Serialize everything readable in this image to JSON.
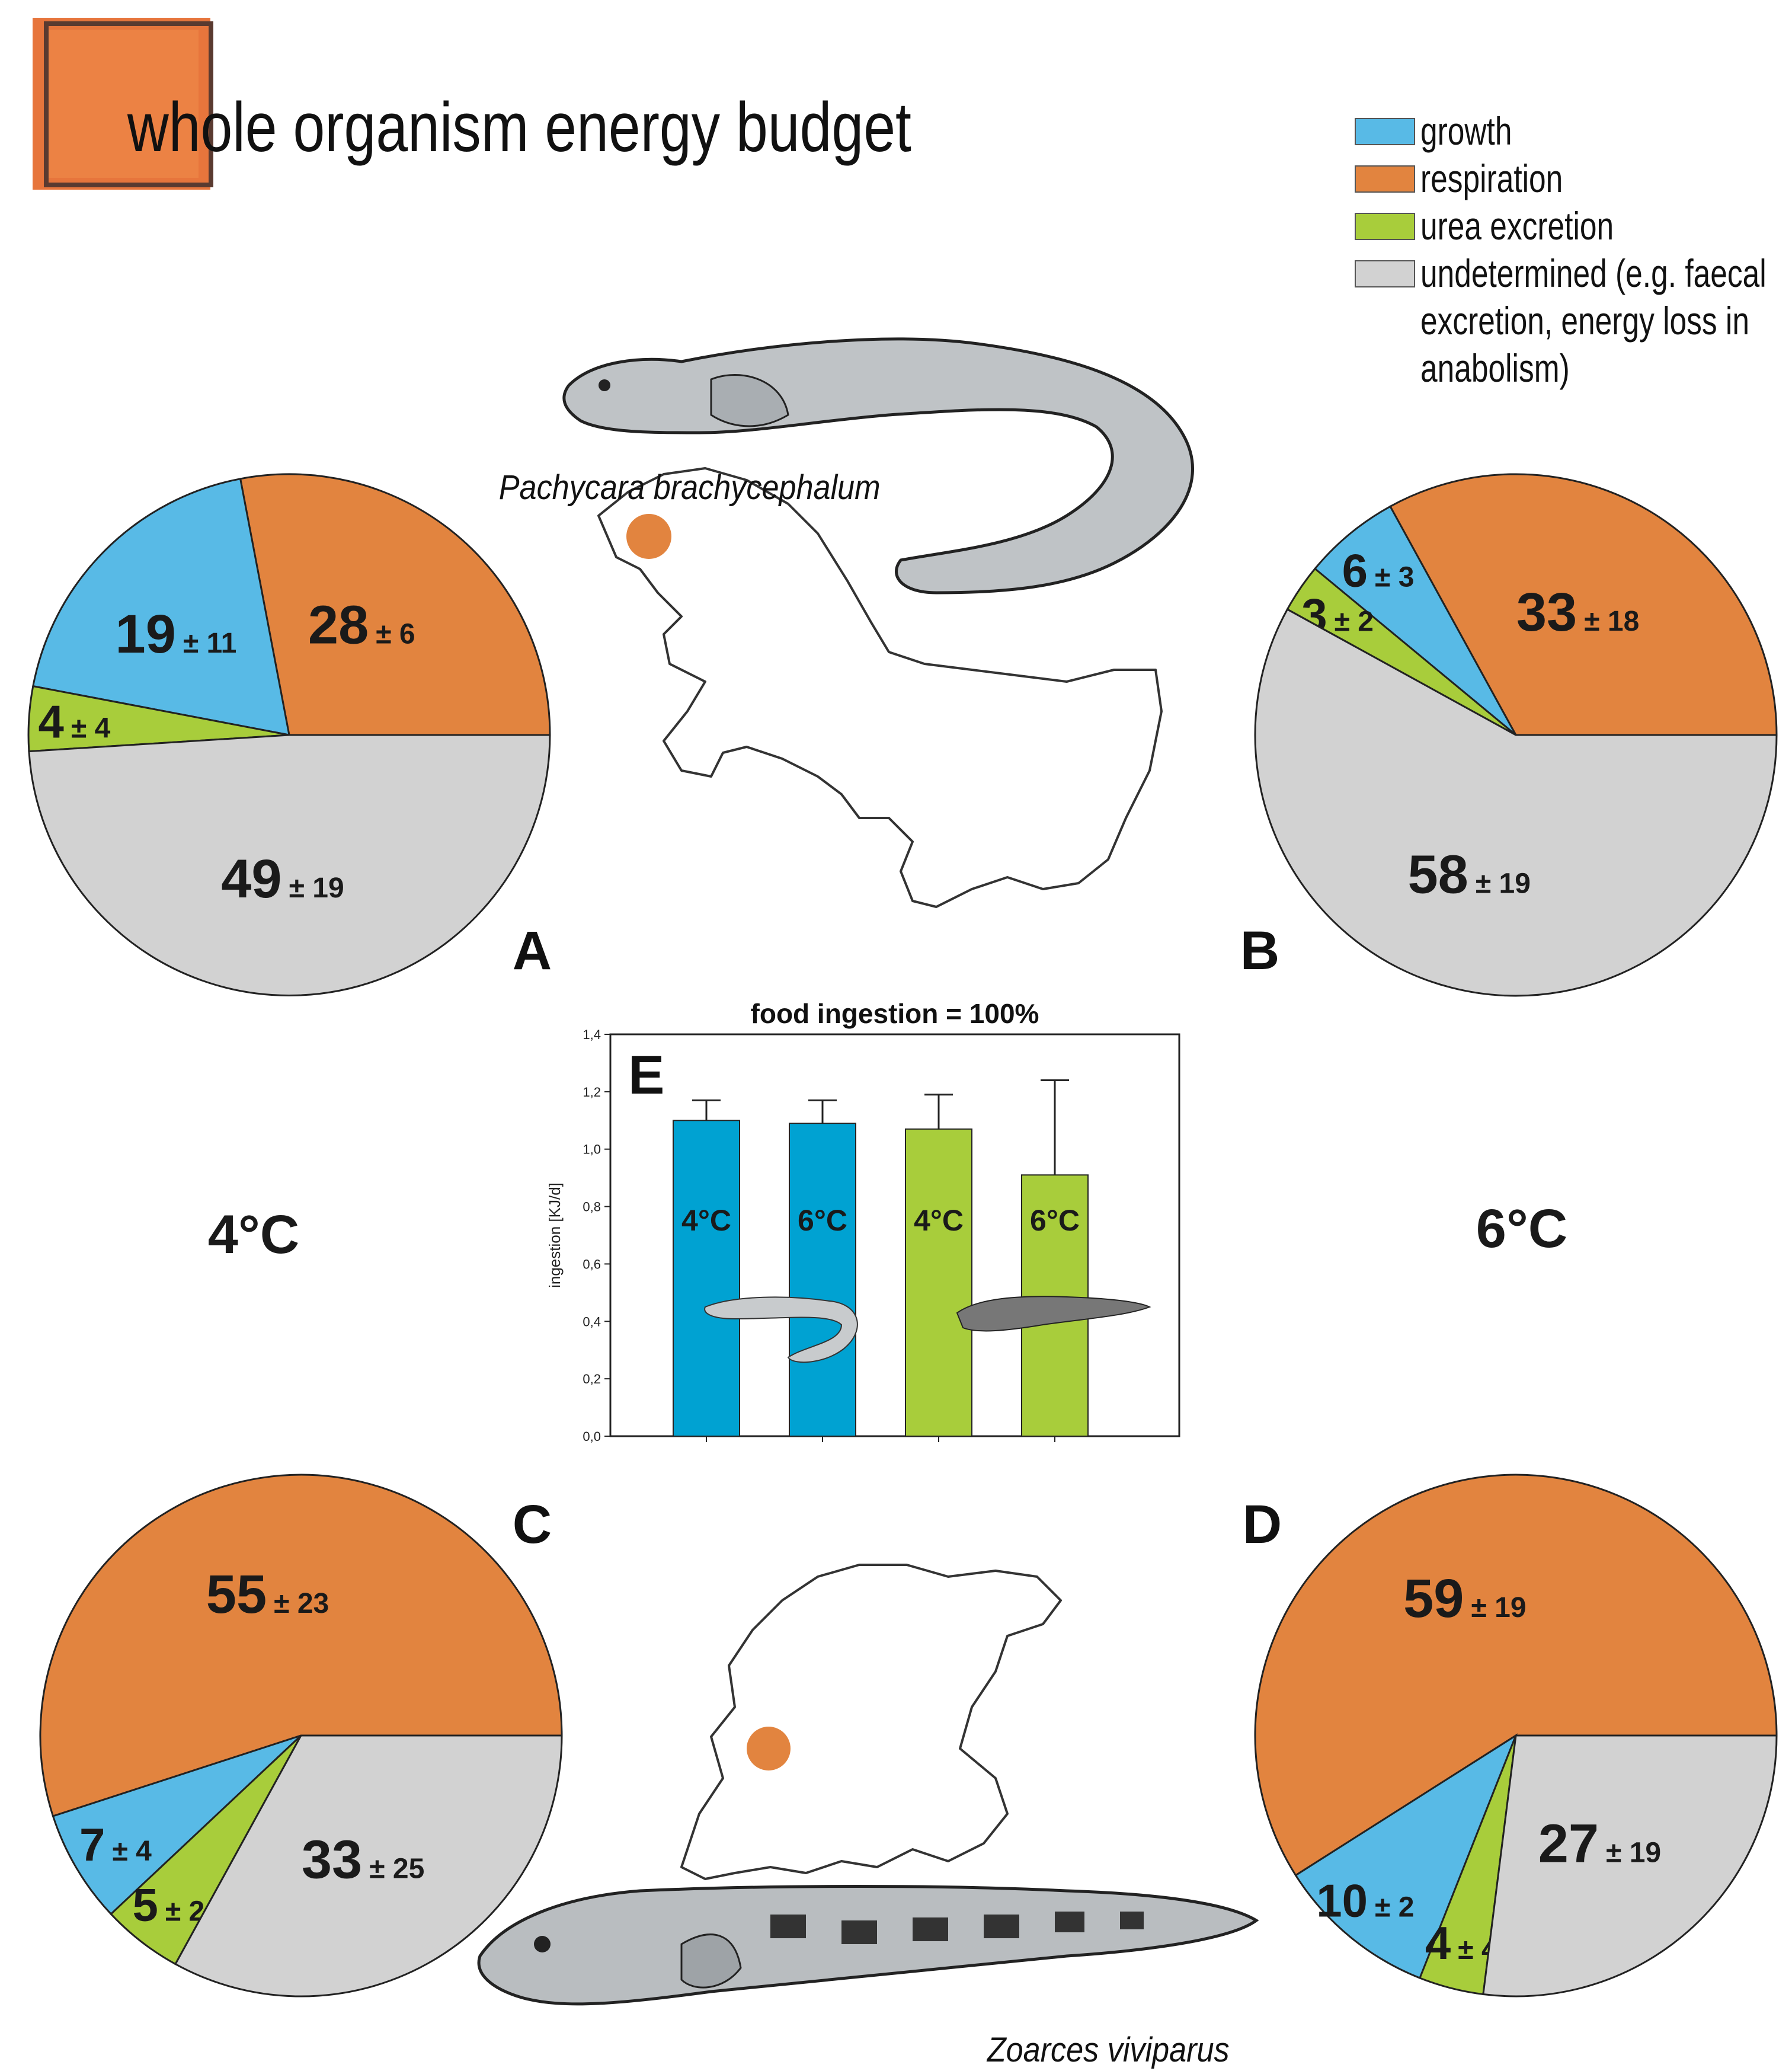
{
  "title": "whole organism energy budget",
  "colors": {
    "growth": "#58bae6",
    "respiration": "#e2843f",
    "urea": "#a8cd3b",
    "undetermined": "#d2d2d2",
    "bar_blue": "#00a2d2",
    "bar_green": "#a8cd3b",
    "dot": "#e2843f",
    "title_square": "#e7753c"
  },
  "legend": [
    {
      "key": "growth",
      "label": "growth"
    },
    {
      "key": "respiration",
      "label": "respiration"
    },
    {
      "key": "urea",
      "label": "urea excretion"
    },
    {
      "key": "undetermined",
      "label": "undetermined (e.g. faecal"
    },
    {
      "key": "",
      "label": "excretion, energy loss in"
    },
    {
      "key": "",
      "label": "anabolism)"
    }
  ],
  "species": {
    "antarctic": "Pachycara brachycephalum",
    "north_sea": "Zoarces viviparus"
  },
  "temps": {
    "left": "4°C",
    "right": "6°C"
  },
  "chart_data": [
    {
      "type": "pie",
      "panel": "A",
      "slices": [
        {
          "category": "respiration",
          "value": 28,
          "sd": "± 6"
        },
        {
          "category": "growth",
          "value": 19,
          "sd": "± 11"
        },
        {
          "category": "urea",
          "value": 4,
          "sd": "± 4"
        },
        {
          "category": "undetermined",
          "value": 49,
          "sd": "± 19"
        }
      ]
    },
    {
      "type": "pie",
      "panel": "B",
      "slices": [
        {
          "category": "respiration",
          "value": 33,
          "sd": "± 18"
        },
        {
          "category": "growth",
          "value": 6,
          "sd": "± 3"
        },
        {
          "category": "urea",
          "value": 3,
          "sd": "± 2"
        },
        {
          "category": "undetermined",
          "value": 58,
          "sd": "± 19"
        }
      ]
    },
    {
      "type": "pie",
      "panel": "C",
      "slices": [
        {
          "category": "respiration",
          "value": 55,
          "sd": "± 23"
        },
        {
          "category": "growth",
          "value": 7,
          "sd": "± 4"
        },
        {
          "category": "urea",
          "value": 5,
          "sd": "± 2"
        },
        {
          "category": "undetermined",
          "value": 33,
          "sd": "± 25"
        }
      ]
    },
    {
      "type": "pie",
      "panel": "D",
      "slices": [
        {
          "category": "respiration",
          "value": 59,
          "sd": "± 19"
        },
        {
          "category": "growth",
          "value": 10,
          "sd": "± 2"
        },
        {
          "category": "urea",
          "value": 4,
          "sd": "± 4"
        },
        {
          "category": "undetermined",
          "value": 27,
          "sd": "± 19"
        }
      ]
    },
    {
      "type": "bar",
      "panel": "E",
      "title": "food ingestion = 100%",
      "ylabel": "ingestion [KJ/d]",
      "ylim": [
        0,
        1.4
      ],
      "yticks": [
        "0,0",
        "0,2",
        "0,4",
        "0,6",
        "0,8",
        "1,0",
        "1,2",
        "1,4"
      ],
      "bars": [
        {
          "label": "4°C",
          "value": 1.1,
          "err": 0.07,
          "color": "bar_blue"
        },
        {
          "label": "6°C",
          "value": 1.09,
          "err": 0.08,
          "color": "bar_blue"
        },
        {
          "label": "4°C",
          "value": 1.07,
          "err": 0.12,
          "color": "bar_green"
        },
        {
          "label": "6°C",
          "value": 0.91,
          "err": 0.33,
          "color": "bar_green"
        }
      ]
    }
  ]
}
